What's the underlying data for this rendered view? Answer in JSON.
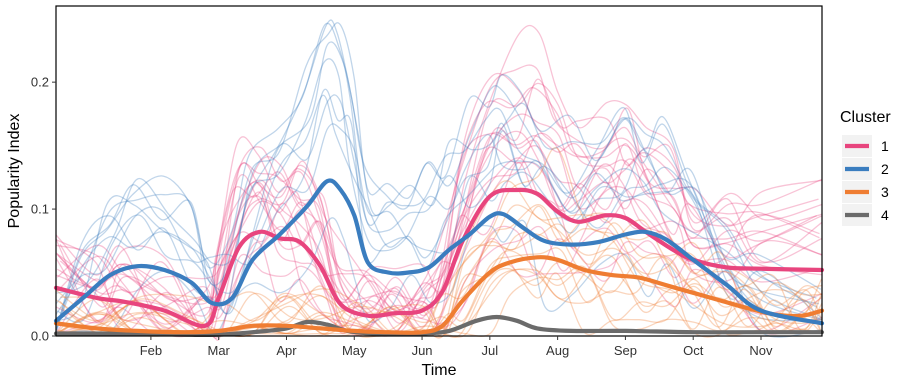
{
  "chart_data": {
    "type": "line",
    "title": "",
    "xlabel": "Time",
    "ylabel": "Popularity Index",
    "x_ticks": [
      "Feb",
      "Mar",
      "Apr",
      "May",
      "Jun",
      "Jul",
      "Aug",
      "Sep",
      "Oct",
      "Nov"
    ],
    "y_ticks": [
      "0.0",
      "0.1",
      "0.2"
    ],
    "x_range_months": [
      0.6,
      11.9
    ],
    "ylim": [
      0,
      0.26
    ],
    "legend": {
      "title": "Cluster",
      "placement": "right"
    },
    "colors": {
      "1": "#e8457e",
      "2": "#3a7dbf",
      "3": "#ef7d32",
      "4": "#6b6b6b"
    },
    "series": [
      {
        "name": "1",
        "color": "#e8457e",
        "points": [
          [
            0.6,
            0.038
          ],
          [
            1.2,
            0.03
          ],
          [
            1.6,
            0.027
          ],
          [
            2.2,
            0.02
          ],
          [
            2.8,
            0.008
          ],
          [
            3.0,
            0.03
          ],
          [
            3.3,
            0.07
          ],
          [
            3.6,
            0.082
          ],
          [
            3.9,
            0.077
          ],
          [
            4.2,
            0.074
          ],
          [
            4.5,
            0.055
          ],
          [
            4.8,
            0.025
          ],
          [
            5.2,
            0.016
          ],
          [
            5.6,
            0.018
          ],
          [
            6.0,
            0.02
          ],
          [
            6.3,
            0.035
          ],
          [
            6.6,
            0.075
          ],
          [
            7.0,
            0.11
          ],
          [
            7.4,
            0.115
          ],
          [
            7.7,
            0.112
          ],
          [
            8.0,
            0.098
          ],
          [
            8.3,
            0.09
          ],
          [
            8.7,
            0.095
          ],
          [
            9.0,
            0.093
          ],
          [
            9.3,
            0.082
          ],
          [
            9.7,
            0.068
          ],
          [
            10.0,
            0.06
          ],
          [
            10.5,
            0.054
          ],
          [
            11.0,
            0.053
          ],
          [
            11.9,
            0.052
          ]
        ]
      },
      {
        "name": "2",
        "color": "#3a7dbf",
        "points": [
          [
            0.6,
            0.012
          ],
          [
            1.0,
            0.03
          ],
          [
            1.4,
            0.048
          ],
          [
            1.8,
            0.055
          ],
          [
            2.2,
            0.052
          ],
          [
            2.6,
            0.042
          ],
          [
            2.9,
            0.026
          ],
          [
            3.2,
            0.03
          ],
          [
            3.5,
            0.06
          ],
          [
            3.9,
            0.08
          ],
          [
            4.3,
            0.102
          ],
          [
            4.6,
            0.122
          ],
          [
            4.8,
            0.115
          ],
          [
            5.0,
            0.095
          ],
          [
            5.2,
            0.058
          ],
          [
            5.5,
            0.05
          ],
          [
            5.8,
            0.05
          ],
          [
            6.1,
            0.054
          ],
          [
            6.4,
            0.068
          ],
          [
            6.7,
            0.08
          ],
          [
            7.0,
            0.094
          ],
          [
            7.2,
            0.096
          ],
          [
            7.5,
            0.085
          ],
          [
            7.8,
            0.075
          ],
          [
            8.2,
            0.072
          ],
          [
            8.6,
            0.074
          ],
          [
            9.0,
            0.08
          ],
          [
            9.3,
            0.082
          ],
          [
            9.6,
            0.076
          ],
          [
            10.0,
            0.06
          ],
          [
            10.5,
            0.04
          ],
          [
            11.0,
            0.02
          ],
          [
            11.9,
            0.01
          ]
        ]
      },
      {
        "name": "3",
        "color": "#ef7d32",
        "points": [
          [
            0.6,
            0.01
          ],
          [
            1.2,
            0.006
          ],
          [
            1.8,
            0.004
          ],
          [
            2.5,
            0.003
          ],
          [
            3.0,
            0.004
          ],
          [
            3.5,
            0.008
          ],
          [
            4.0,
            0.008
          ],
          [
            4.5,
            0.006
          ],
          [
            5.0,
            0.004
          ],
          [
            5.5,
            0.003
          ],
          [
            6.0,
            0.003
          ],
          [
            6.3,
            0.008
          ],
          [
            6.6,
            0.028
          ],
          [
            7.0,
            0.05
          ],
          [
            7.3,
            0.058
          ],
          [
            7.7,
            0.062
          ],
          [
            8.0,
            0.06
          ],
          [
            8.4,
            0.052
          ],
          [
            8.8,
            0.048
          ],
          [
            9.2,
            0.046
          ],
          [
            9.6,
            0.04
          ],
          [
            10.0,
            0.034
          ],
          [
            10.4,
            0.028
          ],
          [
            10.8,
            0.022
          ],
          [
            11.2,
            0.017
          ],
          [
            11.6,
            0.016
          ],
          [
            11.9,
            0.02
          ]
        ]
      },
      {
        "name": "4",
        "color": "#6b6b6b",
        "points": [
          [
            0.6,
            0.002
          ],
          [
            1.5,
            0.002
          ],
          [
            2.5,
            0.001
          ],
          [
            3.0,
            0.001
          ],
          [
            3.5,
            0.003
          ],
          [
            4.0,
            0.006
          ],
          [
            4.3,
            0.011
          ],
          [
            4.6,
            0.009
          ],
          [
            4.9,
            0.004
          ],
          [
            5.3,
            0.002
          ],
          [
            6.0,
            0.002
          ],
          [
            6.4,
            0.004
          ],
          [
            6.8,
            0.012
          ],
          [
            7.1,
            0.015
          ],
          [
            7.4,
            0.012
          ],
          [
            7.7,
            0.006
          ],
          [
            8.2,
            0.004
          ],
          [
            9.0,
            0.004
          ],
          [
            10.0,
            0.003
          ],
          [
            11.0,
            0.003
          ],
          [
            11.9,
            0.003
          ]
        ]
      }
    ]
  }
}
